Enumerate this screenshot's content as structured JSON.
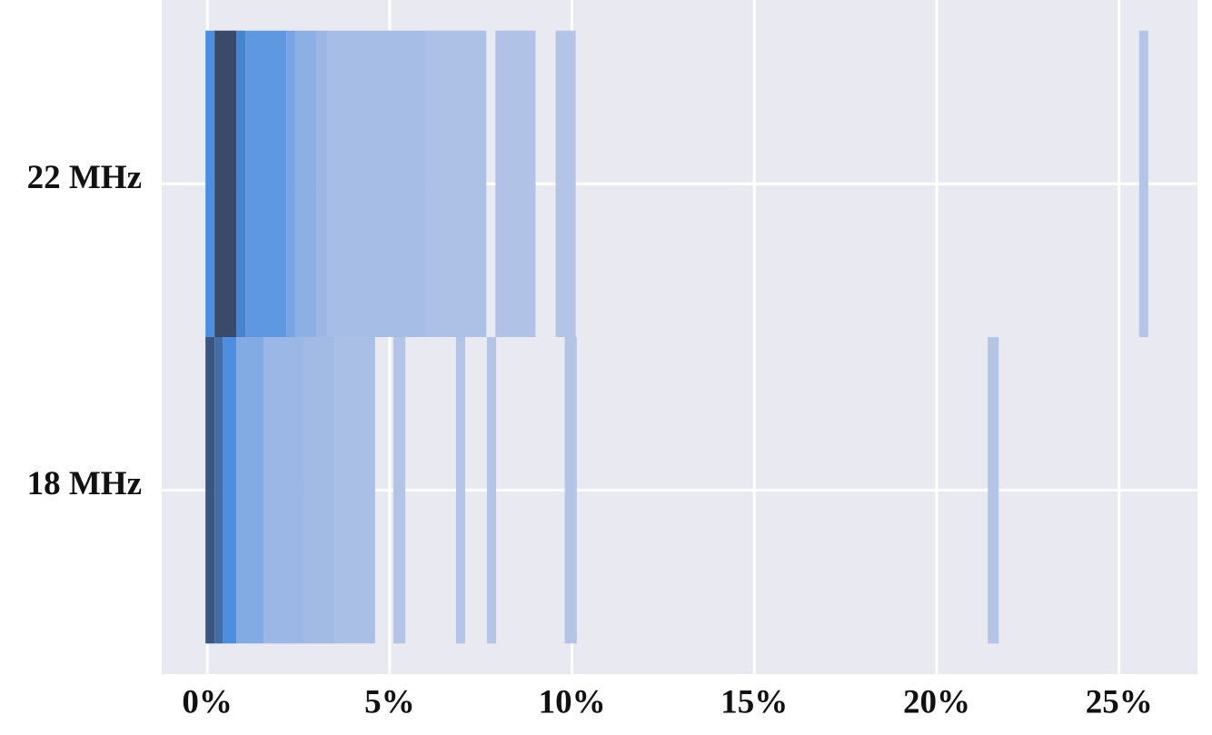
{
  "chart_data": {
    "type": "hist2d",
    "categories": [
      "22 MHz",
      "18 MHz"
    ],
    "series": [
      {
        "name": "22 MHz",
        "bins": [
          -0.05,
          0.2,
          0.8,
          1.05,
          2.17,
          2.4,
          3.0,
          3.3,
          6.0,
          7.65,
          7.9,
          9.0,
          9.55,
          10.1,
          25.55,
          25.8
        ],
        "counts": [
          30,
          60,
          35,
          25,
          18,
          12,
          8,
          5,
          3,
          0,
          2,
          0,
          1,
          0,
          1
        ]
      },
      {
        "name": "18 MHz",
        "bins": [
          -0.05,
          0.2,
          0.42,
          0.8,
          1.55,
          2.66,
          3.5,
          4.6,
          5.1,
          5.43,
          6.82,
          7.07,
          7.67,
          7.92,
          9.8,
          10.13,
          21.4,
          21.7
        ],
        "counts": [
          55,
          45,
          30,
          15,
          8,
          6,
          4,
          0,
          1,
          0,
          1,
          0,
          1,
          0,
          1,
          0,
          1
        ]
      }
    ],
    "cmap": [
      "#b4c4e6",
      "#4a8ee0",
      "#394a6b"
    ],
    "xlim": [
      -1.25,
      27.15
    ],
    "xticks": [
      {
        "value": 0,
        "label": "0%"
      },
      {
        "value": 5,
        "label": "5%"
      },
      {
        "value": 10,
        "label": "10%"
      },
      {
        "value": 15,
        "label": "15%"
      },
      {
        "value": 20,
        "label": "20%"
      },
      {
        "value": 25,
        "label": "25%"
      }
    ],
    "grid": true,
    "background": "#e9e9f1"
  }
}
